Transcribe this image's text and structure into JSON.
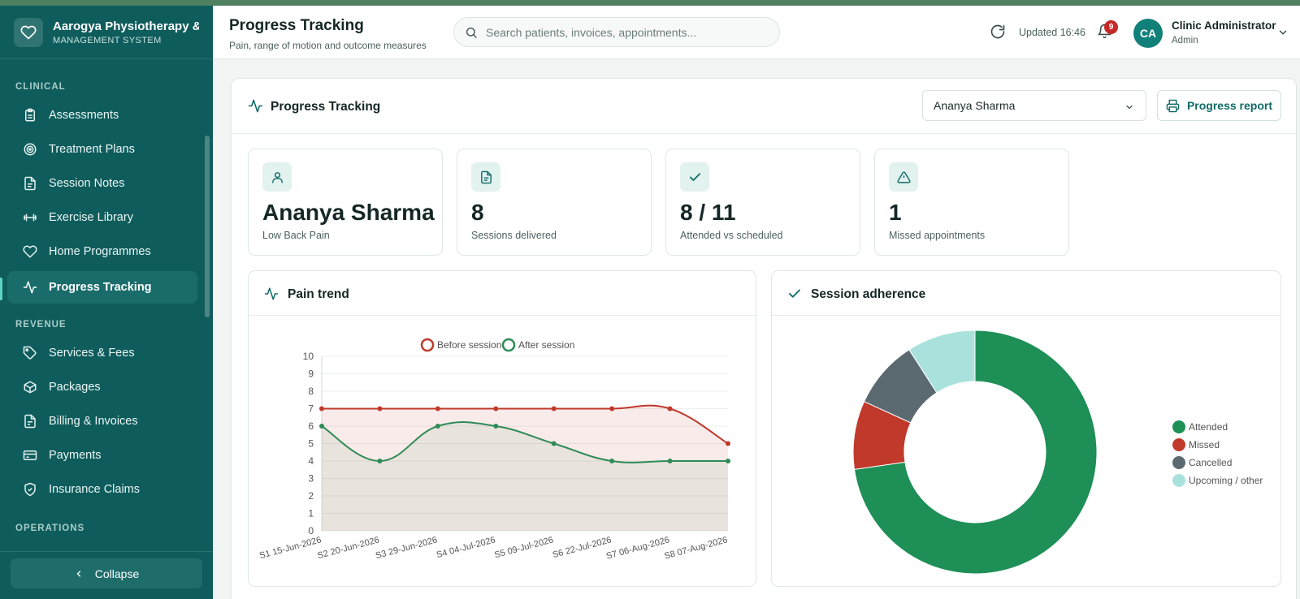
{
  "app": {
    "name": "Aarogya Physiotherapy & I",
    "subtitle": "MANAGEMENT SYSTEM"
  },
  "sidebar": {
    "sections": [
      {
        "title": "CLINICAL"
      },
      {
        "title": "REVENUE"
      },
      {
        "title": "OPERATIONS"
      }
    ],
    "items": [
      {
        "label": "Assessments",
        "icon": "clipboard-icon"
      },
      {
        "label": "Treatment Plans",
        "icon": "target-icon"
      },
      {
        "label": "Session Notes",
        "icon": "file-text-icon"
      },
      {
        "label": "Exercise Library",
        "icon": "dumbbell-icon"
      },
      {
        "label": "Home Programmes",
        "icon": "heart-icon"
      },
      {
        "label": "Progress Tracking",
        "icon": "activity-icon",
        "active": true
      },
      {
        "label": "Services & Fees",
        "icon": "tag-icon"
      },
      {
        "label": "Packages",
        "icon": "package-icon"
      },
      {
        "label": "Billing & Invoices",
        "icon": "invoice-icon"
      },
      {
        "label": "Payments",
        "icon": "credit-card-icon"
      },
      {
        "label": "Insurance Claims",
        "icon": "shield-check-icon"
      }
    ],
    "collapse_label": "Collapse"
  },
  "header": {
    "title": "Progress Tracking",
    "subtitle": "Pain, range of motion and outcome measures",
    "search_placeholder": "Search patients, invoices, appointments...",
    "updated": "Updated 16:46",
    "notification_count": "9",
    "user": {
      "initials": "CA",
      "name": "Clinic Administrator",
      "role": "Admin"
    }
  },
  "panel": {
    "title": "Progress Tracking",
    "patient_selected": "Ananya Sharma",
    "report_button": "Progress report"
  },
  "stats": [
    {
      "value": "Ananya Sharma",
      "label": "Low Back Pain",
      "icon": "user-icon"
    },
    {
      "value": "8",
      "label": "Sessions delivered",
      "icon": "file-icon"
    },
    {
      "value": "8 / 11",
      "label": "Attended vs scheduled",
      "icon": "check-icon"
    },
    {
      "value": "1",
      "label": "Missed appointments",
      "icon": "alert-triangle-icon"
    }
  ],
  "pain_card": {
    "title": "Pain trend"
  },
  "adherence_card": {
    "title": "Session adherence"
  },
  "colors": {
    "before": "#c0392b",
    "after": "#2e8b57",
    "attended": "#1e8f57",
    "missed": "#c0392b",
    "cancelled": "#5b6a71",
    "upcoming": "#a9e2dc"
  },
  "chart_data": [
    {
      "type": "line",
      "categories": [
        "S1 15-Jun-2026",
        "S2 20-Jun-2026",
        "S3 29-Jun-2026",
        "S4 04-Jul-2026",
        "S5 09-Jul-2026",
        "S6 22-Jul-2026",
        "S7 06-Aug-2026",
        "S8 07-Aug-2026"
      ],
      "series": [
        {
          "name": "Before session",
          "values": [
            7,
            7,
            7,
            7,
            7,
            7,
            7,
            5
          ]
        },
        {
          "name": "After session",
          "values": [
            6,
            4,
            6,
            6,
            5,
            4,
            4,
            4
          ]
        }
      ],
      "ylim": [
        0,
        10
      ],
      "yticks": [
        0,
        1,
        2,
        3,
        4,
        5,
        6,
        7,
        8,
        9,
        10
      ],
      "grid": true,
      "legend": "top"
    },
    {
      "type": "pie",
      "donut": true,
      "labels": [
        "Attended",
        "Missed",
        "Cancelled",
        "Upcoming / other"
      ],
      "values": [
        8,
        1,
        1,
        1
      ],
      "legend": "right"
    }
  ]
}
